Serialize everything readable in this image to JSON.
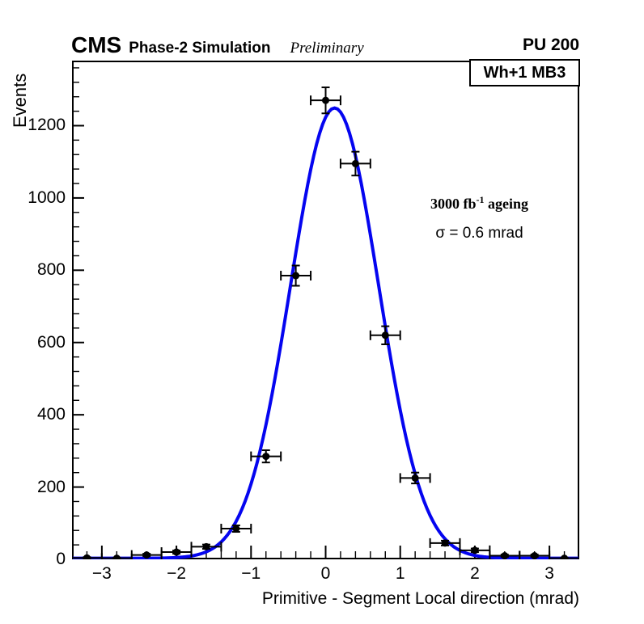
{
  "header": {
    "experiment": "CMS",
    "simulation": "Phase-2 Simulation",
    "preliminary": "Preliminary",
    "pileup": "PU 200"
  },
  "region_label": "Wh+1 MB3",
  "annotations": {
    "lumi_prefix": "3000 fb",
    "lumi_exponent": "-1",
    "lumi_suffix": " ageing",
    "sigma": "σ = 0.6 mrad"
  },
  "chart_data": {
    "type": "scatter",
    "title": "",
    "xlabel": "Primitive - Segment Local direction (mrad)",
    "ylabel": "Events",
    "xlim": [
      -3.4,
      3.4
    ],
    "ylim": [
      0,
      1380
    ],
    "x_major_ticks": [
      -3,
      -2,
      -1,
      0,
      1,
      2,
      3
    ],
    "x_minor_step": 0.2,
    "y_major_ticks": [
      0,
      200,
      400,
      600,
      800,
      1000,
      1200
    ],
    "y_minor_step": 40,
    "grid": false,
    "legend": "none",
    "marker_color": "#000000",
    "points": {
      "x": [
        -3.2,
        -2.8,
        -2.4,
        -2.0,
        -1.6,
        -1.2,
        -0.8,
        -0.4,
        0.0,
        0.4,
        0.8,
        1.2,
        1.6,
        2.0,
        2.4,
        2.8,
        3.2
      ],
      "y": [
        4,
        3,
        12,
        20,
        35,
        85,
        285,
        785,
        1270,
        1095,
        620,
        225,
        45,
        25,
        10,
        10,
        3
      ],
      "yerr": [
        2,
        1.7,
        3.5,
        4.5,
        6,
        9,
        17,
        28,
        36,
        33,
        25,
        15,
        6.7,
        5,
        3.2,
        3.2,
        1.7
      ],
      "x_halfwidth": 0.2
    },
    "fit": {
      "type": "gaussian",
      "amplitude": 1246,
      "mean": 0.12,
      "sigma": 0.59,
      "offset": 3,
      "sigma_label_mrad": 0.6,
      "color": "#0505f0",
      "line_width": 4
    }
  }
}
